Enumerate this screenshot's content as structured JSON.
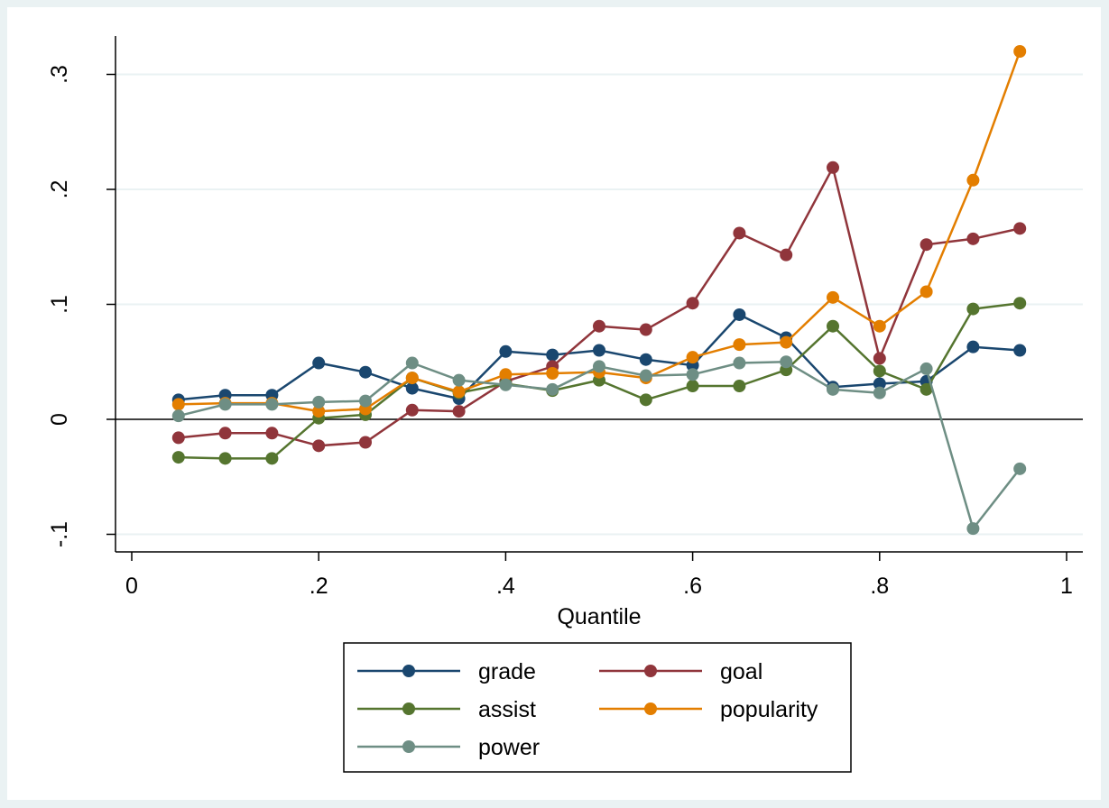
{
  "chart_data": {
    "type": "line",
    "title": "",
    "xlabel": "Quantile",
    "ylabel": "",
    "xlim": [
      0,
      1
    ],
    "ylim": [
      -0.1,
      0.3
    ],
    "x_ticks": [
      {
        "value": 0,
        "label": "0"
      },
      {
        "value": 0.2,
        "label": ".2"
      },
      {
        "value": 0.4,
        "label": ".4"
      },
      {
        "value": 0.6,
        "label": ".6"
      },
      {
        "value": 0.8,
        "label": ".8"
      },
      {
        "value": 1,
        "label": "1"
      }
    ],
    "y_ticks": [
      {
        "value": -0.1,
        "label": "-.1"
      },
      {
        "value": 0,
        "label": "0"
      },
      {
        "value": 0.1,
        "label": ".1"
      },
      {
        "value": 0.2,
        "label": ".2"
      },
      {
        "value": 0.3,
        "label": ".3"
      }
    ],
    "grid": true,
    "reference_line_y": 0,
    "legend_position": "bottom",
    "x": [
      0.05,
      0.1,
      0.15,
      0.2,
      0.25,
      0.3,
      0.35,
      0.4,
      0.45,
      0.5,
      0.55,
      0.6,
      0.65,
      0.7,
      0.75,
      0.8,
      0.85,
      0.9,
      0.95
    ],
    "series": [
      {
        "name": "grade",
        "color": "#1a476f",
        "values": [
          0.017,
          0.021,
          0.021,
          0.049,
          0.041,
          0.027,
          0.018,
          0.059,
          0.056,
          0.06,
          0.052,
          0.047,
          0.091,
          0.071,
          0.028,
          0.031,
          0.033,
          0.063,
          0.06
        ]
      },
      {
        "name": "goal",
        "color": "#90353b",
        "values": [
          -0.016,
          -0.012,
          -0.012,
          -0.023,
          -0.02,
          0.008,
          0.007,
          0.033,
          0.046,
          0.081,
          0.078,
          0.101,
          0.162,
          0.143,
          0.219,
          0.053,
          0.152,
          0.157,
          0.166
        ]
      },
      {
        "name": "assist",
        "color": "#55752f",
        "values": [
          -0.033,
          -0.034,
          -0.034,
          0.001,
          0.004,
          0.036,
          0.023,
          0.031,
          0.025,
          0.034,
          0.017,
          0.029,
          0.029,
          0.043,
          0.081,
          0.042,
          0.026,
          0.096,
          0.101
        ]
      },
      {
        "name": "popularity",
        "color": "#e37e00",
        "values": [
          0.013,
          0.014,
          0.014,
          0.007,
          0.009,
          0.036,
          0.024,
          0.039,
          0.04,
          0.041,
          0.036,
          0.054,
          0.065,
          0.067,
          0.106,
          0.081,
          0.111,
          0.208,
          0.32
        ]
      },
      {
        "name": "power",
        "color": "#6e8e84",
        "values": [
          0.003,
          0.013,
          0.013,
          0.015,
          0.016,
          0.049,
          0.034,
          0.03,
          0.026,
          0.046,
          0.038,
          0.039,
          0.049,
          0.05,
          0.026,
          0.023,
          0.044,
          -0.095,
          -0.043
        ]
      }
    ]
  }
}
